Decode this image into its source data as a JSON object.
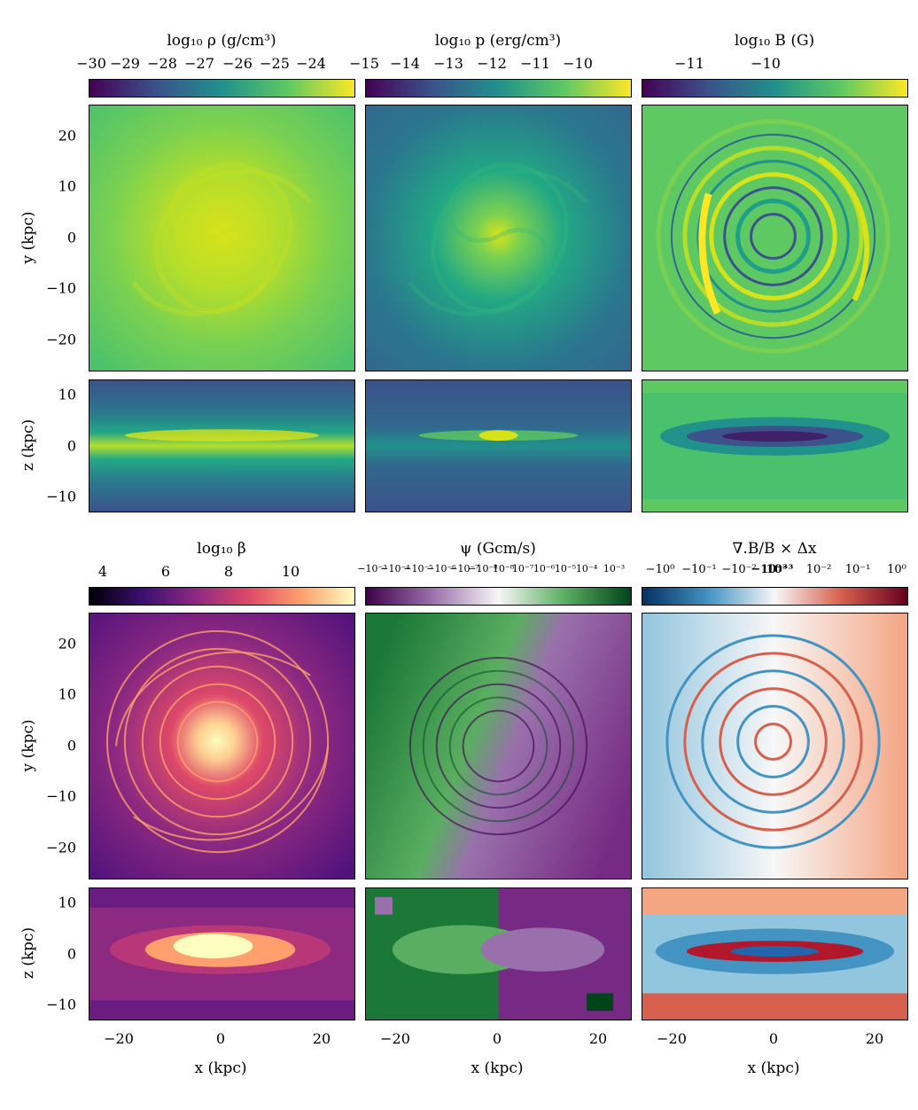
{
  "figure": {
    "row1": {
      "colorbars": [
        {
          "title": "log₁₀ ρ (g/cm³)",
          "ticks": [
            "−30",
            "−29",
            "−28",
            "−27",
            "−26",
            "−25",
            "−24"
          ],
          "colormap": "viridis"
        },
        {
          "title": "log₁₀ p (erg/cm³)",
          "ticks": [
            "−15",
            "−14",
            "−13",
            "−12",
            "−11",
            "−10"
          ],
          "colormap": "viridis"
        },
        {
          "title": "log₁₀ B (G)",
          "ticks": [
            "−11",
            "−10"
          ],
          "colormap": "viridis"
        }
      ]
    },
    "row2": {
      "colorbars": [
        {
          "title": "log₁₀ β",
          "ticks": [
            "4",
            "6",
            "8",
            "10"
          ],
          "colormap": "magma"
        },
        {
          "title": "ψ (Gcm/s)",
          "ticks": [
            "−10⁻³",
            "−10⁻⁴",
            "−10⁻⁵",
            "−10⁻⁶",
            "−10⁻⁷",
            "−10⁻⁸",
            "10⁻⁸",
            "10⁻⁷",
            "10⁻⁶",
            "10⁻⁵",
            "10⁻⁴",
            "10⁻³"
          ],
          "colormap": "PRGn"
        },
        {
          "title": "∇.B/B × Δx",
          "ticks": [
            "−10⁰",
            "−10⁻¹",
            "−10⁻²",
            "−10⁻³",
            "10⁻³",
            "10⁻²",
            "10⁻¹",
            "10⁰"
          ],
          "colormap": "RdBu_r"
        }
      ]
    },
    "axes": {
      "y_label": "y (kpc)",
      "z_label": "z (kpc)",
      "x_label": "x (kpc)",
      "y_ticks": [
        "20",
        "10",
        "0",
        "−10",
        "−20"
      ],
      "z_ticks": [
        "10",
        "0",
        "−10"
      ],
      "x_ticks": [
        "−20",
        "0",
        "20"
      ]
    },
    "colors": {
      "viridis": [
        "#440154",
        "#3b528b",
        "#21918c",
        "#5ec962",
        "#fde725"
      ],
      "magma": [
        "#000004",
        "#3b0f70",
        "#8c2981",
        "#de4968",
        "#fe9f6d",
        "#fcfdbf"
      ],
      "PRGn": [
        "#40004b",
        "#9970ab",
        "#f7f7f7",
        "#5aae61",
        "#00441b"
      ],
      "RdBu_r": [
        "#053061",
        "#4393c3",
        "#f7f7f7",
        "#d6604d",
        "#67001f"
      ]
    }
  }
}
